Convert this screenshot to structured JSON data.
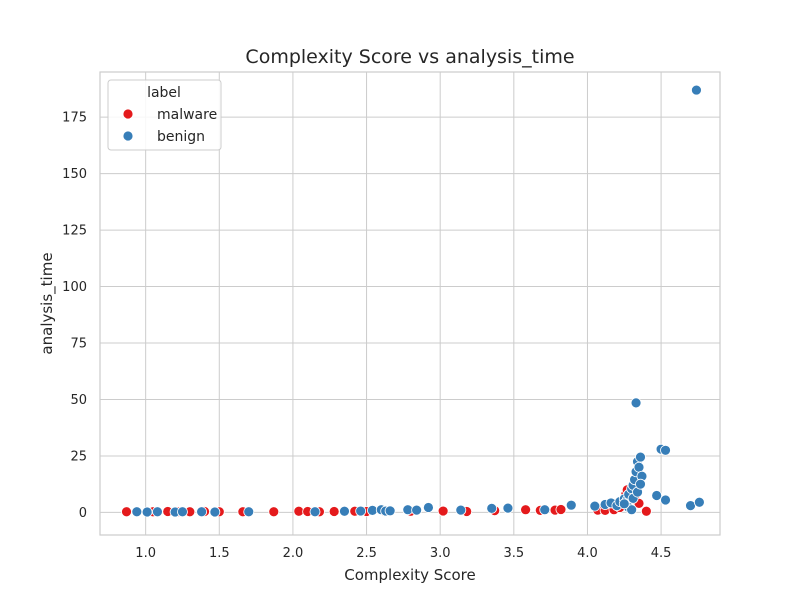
{
  "chart_data": {
    "type": "scatter",
    "title": "Complexity Score vs analysis_time",
    "xlabel": "Complexity Score",
    "ylabel": "analysis_time",
    "xlim": [
      0.69,
      4.9
    ],
    "ylim": [
      -10,
      195
    ],
    "xticks": [
      "1.0",
      "1.5",
      "2.0",
      "2.5",
      "3.0",
      "3.5",
      "4.0",
      "4.5"
    ],
    "yticks": [
      "0",
      "25",
      "50",
      "75",
      "100",
      "125",
      "150",
      "175"
    ],
    "grid": true,
    "legend": {
      "title": "label",
      "placement": "top-left",
      "entries": [
        "malware",
        "benign"
      ]
    },
    "colors": {
      "malware": "#e41a1c",
      "benign": "#377eb8",
      "grid": "#cccccc",
      "axes_edge": "#cccccc",
      "background": "#ffffff"
    },
    "series": [
      {
        "name": "malware",
        "points": [
          [
            0.87,
            0.3
          ],
          [
            1.05,
            0.3
          ],
          [
            1.15,
            0.4
          ],
          [
            1.22,
            0.3
          ],
          [
            1.3,
            0.3
          ],
          [
            1.4,
            0.4
          ],
          [
            1.5,
            0.3
          ],
          [
            1.66,
            0.3
          ],
          [
            1.87,
            0.3
          ],
          [
            2.04,
            0.5
          ],
          [
            2.1,
            0.4
          ],
          [
            2.18,
            0.3
          ],
          [
            2.28,
            0.4
          ],
          [
            2.42,
            0.5
          ],
          [
            2.5,
            0.4
          ],
          [
            2.62,
            0.6
          ],
          [
            2.8,
            0.5
          ],
          [
            3.02,
            0.6
          ],
          [
            3.18,
            0.4
          ],
          [
            3.37,
            0.8
          ],
          [
            3.58,
            1.2
          ],
          [
            3.68,
            0.9
          ],
          [
            3.78,
            1.0
          ],
          [
            3.82,
            1.3
          ],
          [
            4.07,
            1.0
          ],
          [
            4.12,
            0.9
          ],
          [
            4.18,
            1.2
          ],
          [
            4.22,
            2.2
          ],
          [
            4.24,
            5.5
          ],
          [
            4.26,
            8.0
          ],
          [
            4.27,
            10.0
          ],
          [
            4.29,
            3.0
          ],
          [
            4.3,
            1.5
          ],
          [
            4.32,
            7.0
          ],
          [
            4.35,
            4.0
          ],
          [
            4.4,
            0.5
          ]
        ]
      },
      {
        "name": "benign",
        "points": [
          [
            0.94,
            0.3
          ],
          [
            1.01,
            0.2
          ],
          [
            1.08,
            0.3
          ],
          [
            1.2,
            0.2
          ],
          [
            1.25,
            0.3
          ],
          [
            1.38,
            0.3
          ],
          [
            1.47,
            0.2
          ],
          [
            1.7,
            0.3
          ],
          [
            2.15,
            0.3
          ],
          [
            2.35,
            0.5
          ],
          [
            2.46,
            0.6
          ],
          [
            2.54,
            0.9
          ],
          [
            2.6,
            1.2
          ],
          [
            2.63,
            0.6
          ],
          [
            2.66,
            0.7
          ],
          [
            2.78,
            1.2
          ],
          [
            2.84,
            1.0
          ],
          [
            2.92,
            2.2
          ],
          [
            3.14,
            1.0
          ],
          [
            3.35,
            1.8
          ],
          [
            3.46,
            1.9
          ],
          [
            3.71,
            1.2
          ],
          [
            3.89,
            3.2
          ],
          [
            4.05,
            2.8
          ],
          [
            4.12,
            3.5
          ],
          [
            4.16,
            4.2
          ],
          [
            4.2,
            3.0
          ],
          [
            4.22,
            4.8
          ],
          [
            4.25,
            6.0
          ],
          [
            4.27,
            5.5
          ],
          [
            4.28,
            8.0
          ],
          [
            4.3,
            10.5
          ],
          [
            4.31,
            12.0
          ],
          [
            4.32,
            14.5
          ],
          [
            4.33,
            18.0
          ],
          [
            4.33,
            48.5
          ],
          [
            4.34,
            22.5
          ],
          [
            4.35,
            20.0
          ],
          [
            4.36,
            24.5
          ],
          [
            4.37,
            16.0
          ],
          [
            4.28,
            2.2
          ],
          [
            4.3,
            1.2
          ],
          [
            4.25,
            3.8
          ],
          [
            4.31,
            6.2
          ],
          [
            4.34,
            9.0
          ],
          [
            4.36,
            12.5
          ],
          [
            4.47,
            7.5
          ],
          [
            4.5,
            28.0
          ],
          [
            4.53,
            27.5
          ],
          [
            4.53,
            5.5
          ],
          [
            4.7,
            3.0
          ],
          [
            4.74,
            187.0
          ],
          [
            4.76,
            4.5
          ]
        ]
      }
    ]
  }
}
